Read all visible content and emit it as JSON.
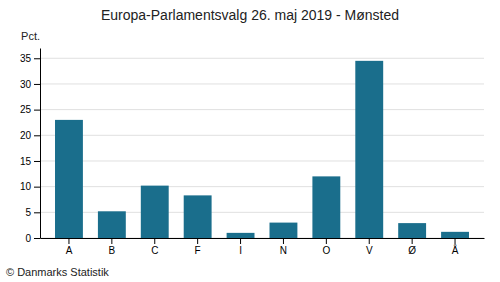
{
  "chart_data": {
    "type": "bar",
    "title": "Europa-Parlamentsvalg 26. maj 2019 - Mønsted",
    "ylabel": "Pct.",
    "footer": "© Danmarks Statistik",
    "categories": [
      "A",
      "B",
      "C",
      "F",
      "I",
      "N",
      "O",
      "V",
      "Ø",
      "Å"
    ],
    "values": [
      23.0,
      5.2,
      10.2,
      8.3,
      1.0,
      3.0,
      12.0,
      34.5,
      2.9,
      1.2
    ],
    "color": "#1a6e8c",
    "ylim": [
      0,
      37
    ],
    "yticks": [
      0,
      5,
      10,
      15,
      20,
      25,
      30,
      35
    ],
    "grid": true
  }
}
